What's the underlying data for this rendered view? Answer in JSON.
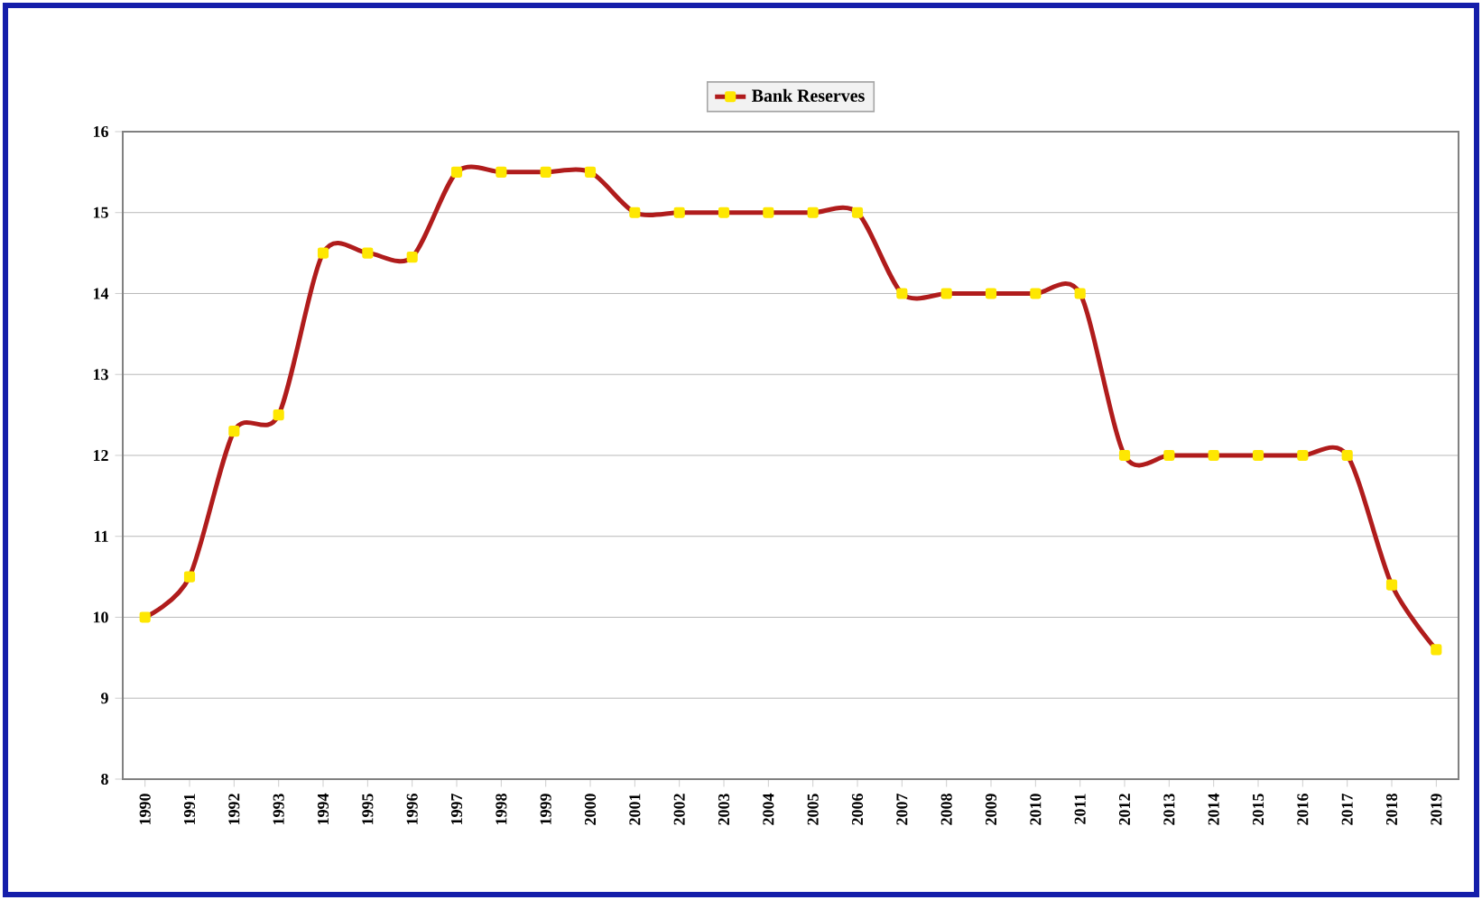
{
  "chart_data": {
    "type": "line",
    "categories": [
      "1990",
      "1991",
      "1992",
      "1993",
      "1994",
      "1995",
      "1996",
      "1997",
      "1998",
      "1999",
      "2000",
      "2001",
      "2002",
      "2003",
      "2004",
      "2005",
      "2006",
      "2007",
      "2008",
      "2009",
      "2010",
      "2011",
      "2012",
      "2013",
      "2014",
      "2015",
      "2016",
      "2017",
      "2018",
      "2019"
    ],
    "series": [
      {
        "name": "Bank Reserves",
        "color": "#b01c1c",
        "values": [
          10.0,
          10.5,
          12.3,
          12.5,
          14.5,
          14.5,
          14.45,
          15.5,
          15.5,
          15.5,
          15.5,
          15.0,
          15.0,
          15.0,
          15.0,
          15.0,
          15.0,
          14.0,
          14.0,
          14.0,
          14.0,
          14.0,
          12.0,
          12.0,
          12.0,
          12.0,
          12.0,
          12.0,
          10.4,
          9.6
        ]
      }
    ],
    "ylim": [
      8,
      16
    ],
    "yticks": [
      8,
      9,
      10,
      11,
      12,
      13,
      14,
      15,
      16
    ],
    "grid": "y",
    "legend": "top",
    "marker": "square",
    "line_style": "solid"
  }
}
